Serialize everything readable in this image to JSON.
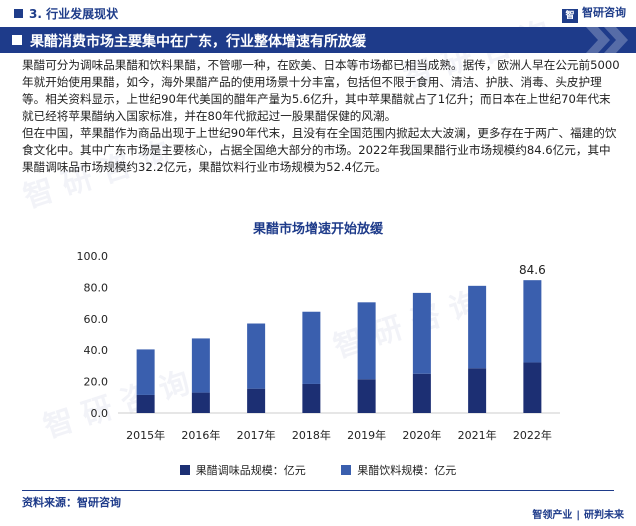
{
  "header": {
    "section": "3. 行业发展现状",
    "brand": "智研咨询"
  },
  "banner": {
    "title": "果醋消费市场主要集中在广东，行业整体增速有所放缓"
  },
  "body": {
    "paragraphs": [
      "果醋可分为调味品果醋和饮料果醋，不管哪一种，在欧美、日本等市场都已相当成熟。据传，欧洲人早在公元前5000年就开始使用果醋，如今，海外果醋产品的使用场景十分丰富，包括但不限于食用、清洁、护肤、消毒、头皮护理等。相关资料显示，上世纪90年代美国的醋年产量为5.6亿升，其中苹果醋就占了1亿升；而日本在上世纪70年代末就已经将苹果醋纳入国家标准，并在80年代掀起过一股果醋保健的风潮。",
      "但在中国，苹果醋作为商品出现于上世纪90年代末，且没有在全国范围内掀起太大波澜，更多存在于两广、福建的饮食文化中。其中广东市场是主要核心，占据全国绝大部分的市场。2022年我国果醋行业市场规模约84.6亿元，其中果醋调味品市场规模约32.2亿元，果醋饮料行业市场规模为52.4亿元。"
    ]
  },
  "chart_data": {
    "type": "bar",
    "stacked": true,
    "title": "果醋市场增速开始放缓",
    "categories": [
      "2015年",
      "2016年",
      "2017年",
      "2018年",
      "2019年",
      "2020年",
      "2021年",
      "2022年"
    ],
    "series": [
      {
        "name": "果醋调味品规模：亿元",
        "color": "#1c2f73",
        "values": [
          11.5,
          13.0,
          15.5,
          18.5,
          21.5,
          25.0,
          28.5,
          32.2
        ]
      },
      {
        "name": "果醋饮料规模：亿元",
        "color": "#3a5fae",
        "values": [
          29.0,
          34.5,
          41.5,
          46.0,
          49.0,
          51.5,
          52.5,
          52.4
        ]
      }
    ],
    "yticks": [
      "0.0",
      "20.0",
      "40.0",
      "60.0",
      "80.0",
      "100.0"
    ],
    "ylim": [
      0,
      100
    ],
    "data_labels": [
      {
        "category": "2022年",
        "value": "84.6"
      }
    ],
    "legend": "bottom"
  },
  "footer": {
    "source": "资料来源：智研咨询",
    "brand_left": "智领产业",
    "brand_right": "研判未来"
  }
}
